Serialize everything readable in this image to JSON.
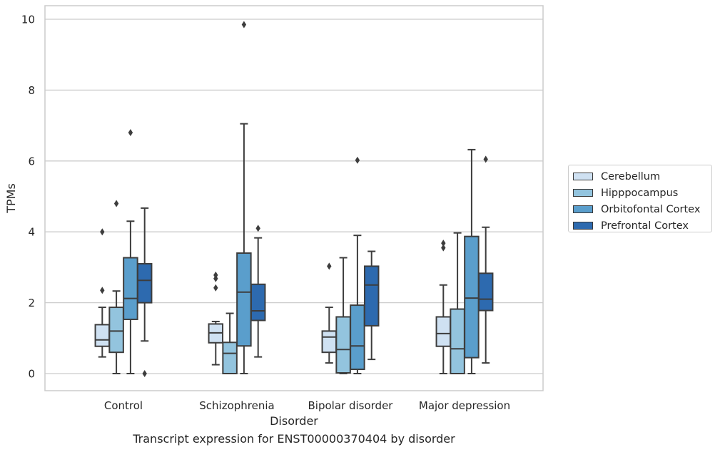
{
  "caption": "Transcript expression for ENST00000370404 by disorder",
  "chart_data": {
    "type": "box",
    "xlabel": "Disorder",
    "ylabel": "TPMs",
    "ylim": [
      -0.45,
      10.35
    ],
    "yticks": [
      0,
      2,
      4,
      6,
      8,
      10
    ],
    "grid": "horizontal",
    "legend_placement": "outside-right",
    "categories": [
      "Control",
      "Schizophrenia",
      "Bipolar disorder",
      "Major depression"
    ],
    "series": [
      {
        "name": "Cerebellum",
        "color": "#cfe1f2",
        "boxes": [
          {
            "whislo": 0.47,
            "q1": 0.77,
            "med": 0.95,
            "q3": 1.38,
            "whishi": 1.87,
            "fliers": [
              2.35,
              4.0
            ]
          },
          {
            "whislo": 0.25,
            "q1": 0.87,
            "med": 1.15,
            "q3": 1.4,
            "whishi": 1.47,
            "fliers": [
              2.42,
              2.68,
              2.78
            ]
          },
          {
            "whislo": 0.3,
            "q1": 0.6,
            "med": 1.03,
            "q3": 1.2,
            "whishi": 1.87,
            "fliers": [
              3.03
            ]
          },
          {
            "whislo": 0.0,
            "q1": 0.77,
            "med": 1.13,
            "q3": 1.6,
            "whishi": 2.5,
            "fliers": [
              3.55,
              3.68
            ]
          }
        ]
      },
      {
        "name": "Hipppocampus",
        "color": "#93c4de",
        "boxes": [
          {
            "whislo": 0.0,
            "q1": 0.6,
            "med": 1.2,
            "q3": 1.87,
            "whishi": 2.33,
            "fliers": [
              4.8
            ]
          },
          {
            "whislo": 0.0,
            "q1": 0.0,
            "med": 0.57,
            "q3": 0.88,
            "whishi": 1.7,
            "fliers": []
          },
          {
            "whislo": 0.0,
            "q1": 0.02,
            "med": 0.68,
            "q3": 1.6,
            "whishi": 3.27,
            "fliers": []
          },
          {
            "whislo": 0.0,
            "q1": 0.0,
            "med": 0.7,
            "q3": 1.82,
            "whishi": 3.97,
            "fliers": []
          }
        ]
      },
      {
        "name": "Orbitofontal Cortex",
        "color": "#5a9ecc",
        "boxes": [
          {
            "whislo": 0.0,
            "q1": 1.53,
            "med": 2.12,
            "q3": 3.27,
            "whishi": 4.3,
            "fliers": [
              6.8
            ]
          },
          {
            "whislo": 0.0,
            "q1": 0.78,
            "med": 2.3,
            "q3": 3.4,
            "whishi": 7.05,
            "fliers": [
              9.85
            ]
          },
          {
            "whislo": 0.0,
            "q1": 0.12,
            "med": 0.78,
            "q3": 1.93,
            "whishi": 3.9,
            "fliers": [
              6.02
            ]
          },
          {
            "whislo": 0.0,
            "q1": 0.45,
            "med": 2.13,
            "q3": 3.87,
            "whishi": 6.32,
            "fliers": []
          }
        ]
      },
      {
        "name": "Prefrontal Cortex",
        "color": "#2d6aaf",
        "boxes": [
          {
            "whislo": 0.92,
            "q1": 2.0,
            "med": 2.63,
            "q3": 3.1,
            "whishi": 4.67,
            "fliers": [
              0.0
            ]
          },
          {
            "whislo": 0.47,
            "q1": 1.5,
            "med": 1.77,
            "q3": 2.52,
            "whishi": 3.83,
            "fliers": [
              4.1
            ]
          },
          {
            "whislo": 0.4,
            "q1": 1.35,
            "med": 2.5,
            "q3": 3.03,
            "whishi": 3.45,
            "fliers": []
          },
          {
            "whislo": 0.3,
            "q1": 1.78,
            "med": 2.1,
            "q3": 2.83,
            "whishi": 4.13,
            "fliers": [
              6.05
            ]
          }
        ]
      }
    ]
  }
}
